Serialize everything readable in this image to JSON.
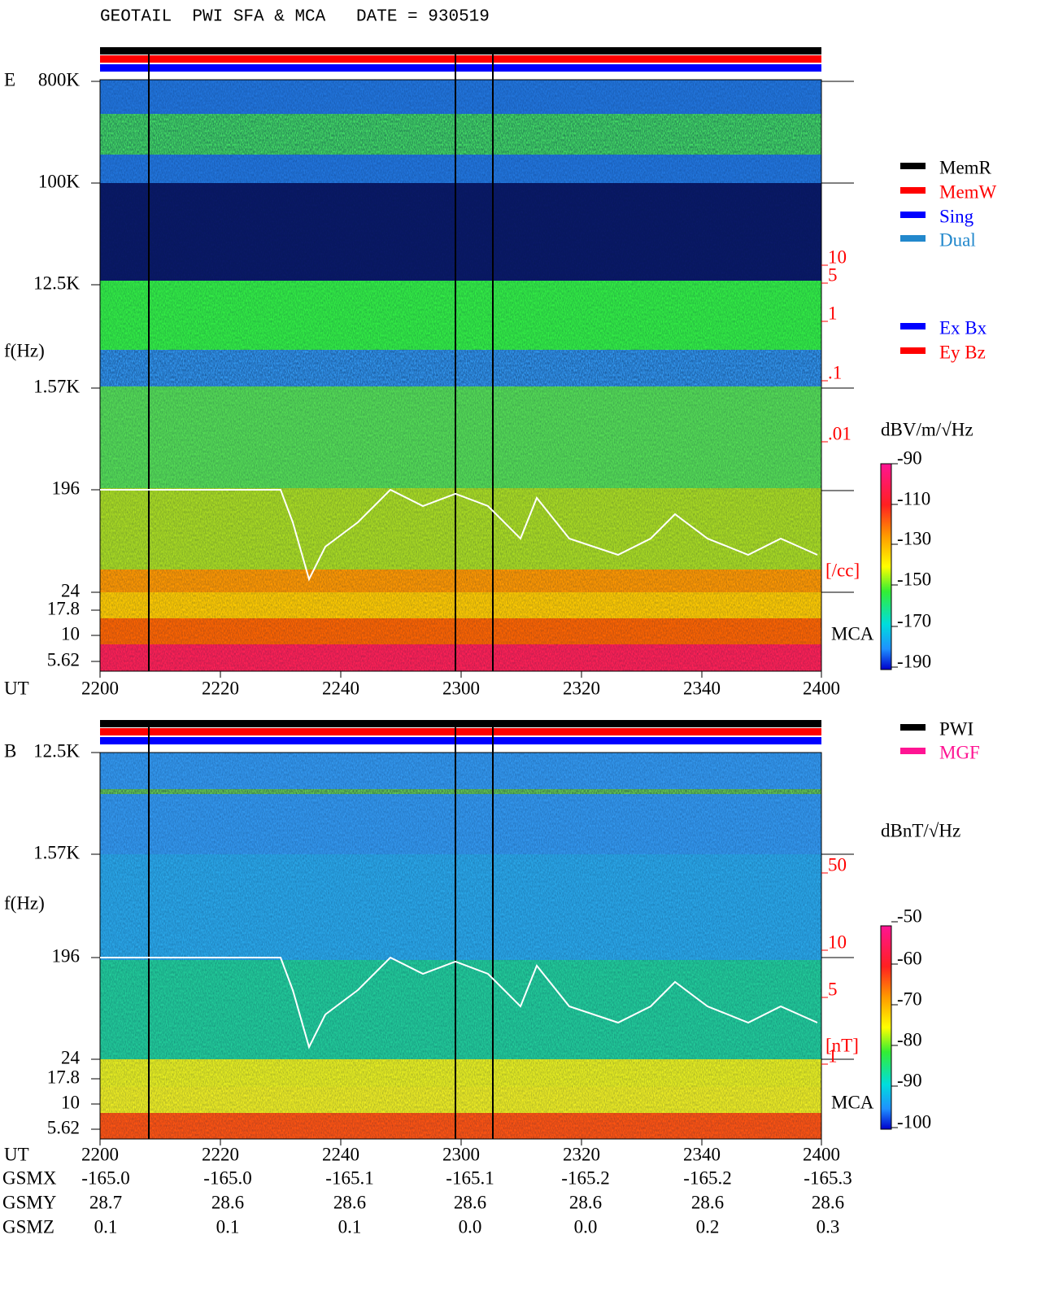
{
  "title": "GEOTAIL  PWI SFA & MCA   DATE = 930519",
  "panels": [
    {
      "label": "E",
      "y_axis_label": "f(Hz)",
      "y_ticks": [
        "800K",
        "100K",
        "12.5K",
        "1.57K",
        "196",
        "24",
        "17.8",
        "10",
        "5.62"
      ],
      "right_ticks": [
        "10",
        "5",
        "1",
        ".1",
        ".01"
      ],
      "right_unit": "[/cc]",
      "mca_label": "MCA",
      "x_axis_label": "UT",
      "x_ticks": [
        "2200",
        "2220",
        "2240",
        "2300",
        "2320",
        "2340",
        "2400"
      ],
      "colorbar_label": "dBV/m/√Hz",
      "colorbar_ticks": [
        "-90",
        "-110",
        "-130",
        "-150",
        "-170",
        "-190"
      ]
    },
    {
      "label": "B",
      "y_axis_label": "f(Hz)",
      "y_ticks": [
        "12.5K",
        "1.57K",
        "196",
        "24",
        "17.8",
        "10",
        "5.62"
      ],
      "right_ticks": [
        "50",
        "10",
        "5",
        "1"
      ],
      "right_unit": "[nT]",
      "mca_label": "MCA",
      "x_axis_label": "UT",
      "x_ticks": [
        "2200",
        "2220",
        "2240",
        "2300",
        "2320",
        "2340",
        "2400"
      ],
      "colorbar_label": "dBnT/√Hz",
      "colorbar_ticks": [
        "-50",
        "-60",
        "-70",
        "-80",
        "-90",
        "-100"
      ]
    }
  ],
  "legends": {
    "mode": [
      "MemR",
      "MemW",
      "Sing",
      "Dual"
    ],
    "components": [
      "Ex Bx",
      "Ey Bz"
    ],
    "source": [
      "PWI",
      "MGF"
    ]
  },
  "orbit": [
    {
      "name": "GSMX",
      "values": [
        "-165.0",
        "-165.0",
        "-165.1",
        "-165.1",
        "-165.2",
        "-165.2",
        "-165.3"
      ]
    },
    {
      "name": "GSMY",
      "values": [
        "28.7",
        "28.6",
        "28.6",
        "28.6",
        "28.6",
        "28.6",
        "28.6"
      ]
    },
    {
      "name": "GSMZ",
      "values": [
        "0.1",
        "0.1",
        "0.1",
        "0.0",
        "0.0",
        "0.2",
        "0.3"
      ]
    }
  ]
}
